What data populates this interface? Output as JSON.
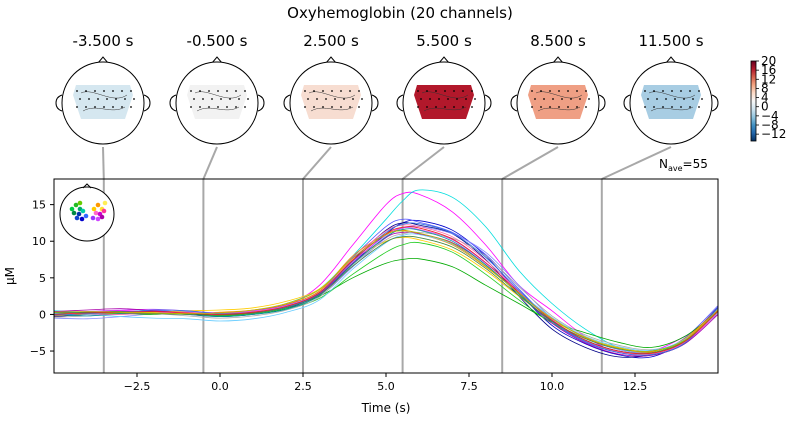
{
  "figure": {
    "title": "Oxyhemoglobin (20 channels)",
    "nave_label": "N",
    "nave_sub": "ave",
    "nave_value": "=55"
  },
  "topomaps": [
    {
      "time_label": "-3.500 s",
      "time": -3.5,
      "mean": 0,
      "fill": "#d5e7f0"
    },
    {
      "time_label": "-0.500 s",
      "time": -0.5,
      "mean": 0,
      "fill": "#f2f2f2"
    },
    {
      "time_label": "2.500 s",
      "time": 2.5,
      "mean": 3,
      "fill": "#f7ddd1"
    },
    {
      "time_label": "5.500 s",
      "time": 5.5,
      "mean": 16,
      "fill": "#b2182b"
    },
    {
      "time_label": "8.500 s",
      "time": 8.5,
      "mean": 8,
      "fill": "#ef9f84"
    },
    {
      "time_label": "11.500 s",
      "time": 11.5,
      "mean": -6,
      "fill": "#a8cde3"
    }
  ],
  "colorbar": {
    "min": -15,
    "max": 20,
    "tick_values": [
      20,
      16,
      12,
      8,
      4,
      0,
      -4,
      -8,
      -12
    ],
    "tick_labels": [
      "20",
      "16",
      "12",
      "8",
      "4",
      "0",
      "−4",
      "−8",
      "−12"
    ],
    "colors": [
      "#053061",
      "#2166ac",
      "#4393c3",
      "#92c5de",
      "#d1e5f0",
      "#f7f7f7",
      "#fddbc7",
      "#f4a582",
      "#d6604d",
      "#b2182b",
      "#67001f"
    ]
  },
  "chart_data": {
    "type": "line",
    "title": "",
    "xlabel": "Time (s)",
    "ylabel": "µM",
    "xlim": [
      -5,
      15
    ],
    "ylim": [
      -8,
      18.5
    ],
    "xticks": [
      -2.5,
      0.0,
      2.5,
      5.0,
      7.5,
      10.0,
      12.5
    ],
    "xtick_labels": [
      "−2.5",
      "0.0",
      "2.5",
      "5.0",
      "7.5",
      "10.0",
      "12.5"
    ],
    "yticks": [
      -5,
      0,
      5,
      10,
      15
    ],
    "ytick_labels": [
      "−5",
      "0",
      "5",
      "10",
      "15"
    ],
    "grid": false,
    "legend": "none",
    "vlines": [
      -3.5,
      -0.5,
      2.5,
      5.5,
      8.5,
      11.5
    ],
    "x": [
      -5,
      -4,
      -3,
      -2,
      -1,
      0,
      1,
      2,
      3,
      4,
      5,
      5.5,
      6,
      7,
      8,
      9,
      10,
      11,
      12,
      13,
      14,
      15
    ],
    "series": [
      {
        "color": "#ff00ff",
        "values": [
          0.2,
          0.3,
          0.5,
          0.4,
          0.1,
          0,
          0.3,
          1.2,
          4,
          9.5,
          15,
          16.5,
          16.4,
          14,
          9.5,
          4,
          0.5,
          -3,
          -5.2,
          -5,
          -3,
          0
        ]
      },
      {
        "color": "#00dddd",
        "values": [
          0.5,
          0.3,
          0.2,
          0.3,
          0.4,
          0.2,
          0.5,
          1.5,
          3.5,
          8,
          13,
          15.5,
          17,
          16,
          12,
          6,
          1.5,
          -2,
          -4.5,
          -5.5,
          -3.5,
          0.5
        ]
      },
      {
        "color": "#0000cc",
        "values": [
          0,
          0.2,
          0.4,
          0.3,
          0,
          -0.3,
          0,
          0.8,
          2.8,
          7,
          11,
          12.5,
          12.8,
          11.5,
          8,
          3,
          -1.5,
          -4,
          -5.5,
          -5.8,
          -3.5,
          1
        ]
      },
      {
        "color": "#000088",
        "values": [
          -0.3,
          0,
          0.2,
          0.4,
          0.2,
          -0.2,
          0.2,
          1,
          3,
          7.5,
          11.5,
          12.5,
          12.2,
          11,
          7.5,
          2.5,
          -2,
          -4.5,
          -5.8,
          -5.5,
          -4,
          0.5
        ]
      },
      {
        "color": "#5555ff",
        "values": [
          0.2,
          -0.2,
          0.3,
          0.5,
          0.3,
          0,
          0.5,
          1.3,
          3.2,
          7.8,
          12,
          13,
          12.6,
          11.2,
          8.2,
          3.5,
          -1,
          -3.8,
          -5.2,
          -5.4,
          -3.2,
          1.2
        ]
      },
      {
        "color": "#8888ff",
        "values": [
          -0.5,
          -0.6,
          -0.3,
          0.1,
          0.4,
          0.2,
          0.4,
          1.1,
          2.5,
          6.5,
          10.5,
          11.8,
          12,
          11,
          8.5,
          4,
          -0.5,
          -3.2,
          -4.8,
          -5.2,
          -3.8,
          0.2
        ]
      },
      {
        "color": "#00aa00",
        "values": [
          0.3,
          0.2,
          0.1,
          0,
          0.2,
          -0.2,
          0.3,
          1,
          2.5,
          5,
          7,
          7.5,
          7.6,
          6.5,
          4,
          1.5,
          -1,
          -2.5,
          -3.8,
          -4.5,
          -3,
          0.5
        ]
      },
      {
        "color": "#22cc22",
        "values": [
          0.1,
          0.3,
          0.4,
          0.2,
          0,
          -0.2,
          0.1,
          0.8,
          2.2,
          5.5,
          8.5,
          9.5,
          9.8,
          8.5,
          5.5,
          2,
          -1.2,
          -3.5,
          -5,
          -5.2,
          -3.6,
          0.4
        ]
      },
      {
        "color": "#ffcc00",
        "values": [
          0,
          0.1,
          0.2,
          0.3,
          0.5,
          0.6,
          0.9,
          1.8,
          3.5,
          7.5,
          10,
          10.5,
          10.2,
          8.8,
          6,
          2.5,
          -0.8,
          -3,
          -4.5,
          -5,
          -3.4,
          0.6
        ]
      },
      {
        "color": "#ff8800",
        "values": [
          -0.2,
          0,
          0.3,
          0.2,
          0.1,
          0.3,
          0.6,
          1.4,
          3.2,
          8,
          11,
          11.5,
          11,
          9.5,
          6.5,
          3,
          -0.5,
          -3.2,
          -4.6,
          -5.1,
          -3.3,
          0.8
        ]
      },
      {
        "color": "#cc44ff",
        "values": [
          0.2,
          0.4,
          0.6,
          0.7,
          0.5,
          0.2,
          0.5,
          1.2,
          3,
          7.2,
          10.8,
          11.8,
          11.6,
          10.2,
          7,
          3.2,
          -0.7,
          -3.6,
          -5,
          -5.3,
          -3.9,
          0.3
        ]
      },
      {
        "color": "#aa00aa",
        "values": [
          0.4,
          0.6,
          0.8,
          0.5,
          0.2,
          0,
          0.2,
          1,
          2.8,
          7,
          10.5,
          11.2,
          11,
          9.8,
          6.8,
          2.8,
          -1.2,
          -3.9,
          -5.4,
          -5.6,
          -4,
          0
        ]
      },
      {
        "color": "#aaaaaa",
        "values": [
          -0.4,
          -0.2,
          0,
          0.1,
          -0.2,
          -0.5,
          -0.2,
          0.6,
          2.4,
          6.8,
          10.2,
          11,
          11.2,
          10.4,
          8,
          3.8,
          -0.2,
          -2.8,
          -4.2,
          -4.8,
          -3.5,
          0.7
        ]
      },
      {
        "color": "#66ccff",
        "values": [
          0.1,
          0,
          -0.3,
          -0.5,
          -0.6,
          -0.9,
          -0.6,
          0.3,
          2,
          6.2,
          9.8,
          10.8,
          10.9,
          9.6,
          6.6,
          3,
          -0.4,
          -3,
          -4.4,
          -4.9,
          -3.4,
          0.2
        ]
      },
      {
        "color": "#009999",
        "values": [
          0,
          -0.2,
          0.1,
          0.2,
          0,
          -0.3,
          0,
          0.7,
          2.6,
          6.9,
          10.6,
          11.6,
          11.5,
          10,
          6.8,
          2.8,
          -1,
          -3.5,
          -5,
          -5.3,
          -3.7,
          0.4
        ]
      },
      {
        "color": "#ff66aa",
        "values": [
          0.3,
          0.1,
          0,
          0.2,
          0.3,
          0.1,
          0.4,
          1.2,
          3,
          7.6,
          11.4,
          12.2,
          12,
          10.6,
          7.4,
          3.2,
          -0.9,
          -3.7,
          -5.1,
          -5.4,
          -3.8,
          0.3
        ]
      },
      {
        "color": "#3377dd",
        "values": [
          -0.1,
          0.1,
          0.3,
          0.6,
          0.5,
          0.1,
          0.3,
          1,
          2.9,
          7.3,
          11.2,
          12.3,
          12.4,
          11.1,
          7.8,
          3.3,
          -0.9,
          -3.7,
          -5.2,
          -5.5,
          -3.9,
          0.9
        ]
      },
      {
        "color": "#448844",
        "values": [
          0.2,
          0.3,
          0.2,
          0.1,
          0,
          -0.1,
          0.2,
          0.9,
          2.7,
          6.6,
          9.9,
          10.6,
          10.5,
          9.2,
          6.3,
          2.6,
          -0.9,
          -3.3,
          -4.7,
          -5,
          -3.5,
          0.4
        ]
      },
      {
        "color": "#ee2222",
        "values": [
          0,
          0.2,
          0.3,
          0.4,
          0.2,
          0,
          0.3,
          1.1,
          3,
          7.4,
          11,
          11.9,
          11.8,
          10.3,
          7.1,
          3,
          -0.8,
          -3.5,
          -5,
          -5.3,
          -3.7,
          0.5
        ]
      },
      {
        "color": "#bbbb00",
        "values": [
          0.3,
          0.4,
          0.3,
          0.2,
          0.1,
          0.2,
          0.6,
          1.5,
          3.4,
          7.7,
          10.9,
          11.4,
          11.1,
          9.7,
          6.6,
          2.9,
          -0.6,
          -3.1,
          -4.6,
          -5,
          -3.5,
          0.6
        ]
      }
    ]
  }
}
